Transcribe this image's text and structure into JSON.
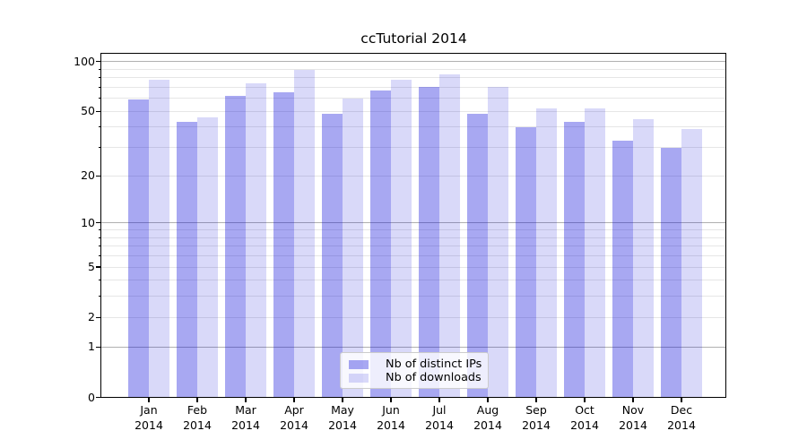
{
  "title": "ccTutorial 2014",
  "chart_data": {
    "type": "bar",
    "title": "ccTutorial 2014",
    "categories": [
      "Jan 2014",
      "Feb 2014",
      "Mar 2014",
      "Apr 2014",
      "May 2014",
      "Jun 2014",
      "Jul 2014",
      "Aug 2014",
      "Sep 2014",
      "Oct 2014",
      "Nov 2014",
      "Dec 2014"
    ],
    "series": [
      {
        "name": "Nb of distinct IPs",
        "color_css": "rgba(0,0,217,0.34)",
        "color_hex_on_white": "#a8a8f2",
        "values": [
          59,
          43,
          62,
          65,
          48,
          67,
          70,
          48,
          40,
          43,
          33,
          30
        ]
      },
      {
        "name": "Nb of downloads",
        "color_css": "rgba(0,0,217,0.15)",
        "color_hex_on_white": "#d9d9f8",
        "values": [
          78,
          46,
          74,
          89,
          60,
          78,
          84,
          70,
          52,
          52,
          45,
          39
        ]
      }
    ],
    "yscale": "log1p",
    "ylim": [
      0,
      111.5
    ],
    "y_major_ticks": [
      0,
      1,
      2,
      5,
      10,
      20,
      50,
      100
    ],
    "y_major_tick_labels": [
      "0",
      "1",
      "2",
      "5",
      "10",
      "20",
      "50",
      "100"
    ],
    "y_minor_gridlines": [
      3,
      4,
      6,
      7,
      8,
      9,
      30,
      40,
      60,
      70,
      80,
      90
    ],
    "y_decade_gridlines": [
      1,
      10,
      100
    ],
    "grid": true,
    "legend_position": "lower center"
  },
  "colors": {
    "background": "#ffffff",
    "spine": "#000000",
    "grid_minor": "#e6e6e6",
    "grid_decade": "#b0b0b0",
    "legend_border": "#cccccc",
    "legend_background": "rgba(255,255,255,0.8)"
  }
}
